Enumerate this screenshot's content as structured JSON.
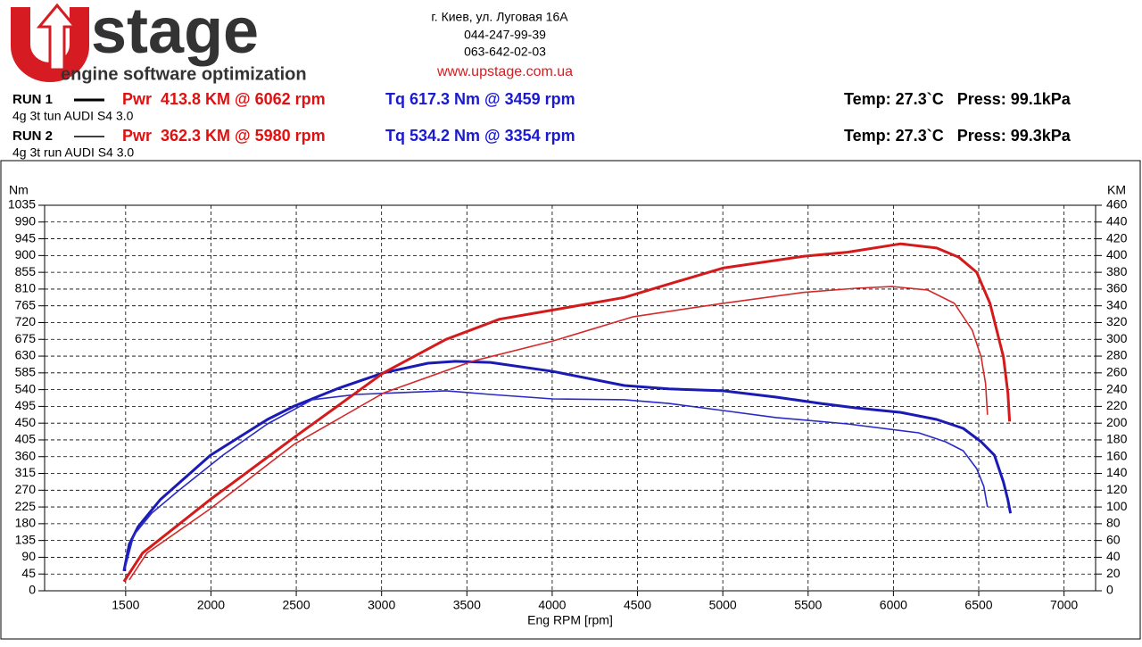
{
  "header": {
    "logo_mark": "U",
    "logo_text": "stage",
    "tagline": "engine software optimization",
    "address": [
      "г. Киев, ул. Луговая 16А",
      "044-247-99-39",
      "063-642-02-03"
    ],
    "website": "www.upstage.com.ua"
  },
  "runs": [
    {
      "label": "RUN 1",
      "power": "Pwr  413.8 KM @ 6062 rpm",
      "torque": "Tq 617.3 Nm @ 3459 rpm",
      "description": "4g 3t tun AUDI S4 3.0",
      "conditions": "Temp: 27.3`C   Press: 99.1kPa"
    },
    {
      "label": "RUN 2",
      "power": "Pwr  362.3 KM @ 5980 rpm",
      "torque": "Tq 534.2 Nm @ 3354 rpm",
      "description": "4g 3t run AUDI S4 3.0",
      "conditions": "Temp: 27.3`C   Press: 99.3kPa"
    }
  ],
  "chart_data": {
    "type": "line",
    "y_label": "Nm",
    "y2_label": "KM",
    "x_label": "Eng RPM [rpm]",
    "grid": true,
    "xlim": [
      1025,
      7185
    ],
    "xticks": [
      1500,
      2000,
      2500,
      3000,
      3500,
      4000,
      4500,
      5000,
      5500,
      6000,
      6500,
      7000
    ],
    "ylim": [
      0,
      1035
    ],
    "yticks": [
      0,
      45,
      90,
      135,
      180,
      225,
      270,
      315,
      360,
      405,
      450,
      495,
      540,
      585,
      630,
      675,
      720,
      765,
      810,
      855,
      900,
      945,
      990,
      1035
    ],
    "y2lim": [
      0,
      460
    ],
    "y2ticks": [
      0,
      20,
      40,
      60,
      80,
      100,
      120,
      140,
      160,
      180,
      200,
      220,
      240,
      260,
      280,
      300,
      320,
      340,
      360,
      380,
      400,
      420,
      440,
      460
    ],
    "series": [
      {
        "color": "#1a1ab4",
        "width": 3,
        "x": [
          1490,
          1521,
          1573,
          1704,
          1997,
          2331,
          2488,
          2750,
          3011,
          3272,
          3429,
          3638,
          4004,
          4423,
          4684,
          5000,
          5313,
          5575,
          5782,
          6043,
          6253,
          6409,
          6514,
          6592,
          6645,
          6671,
          6686
        ],
        "values": [
          53,
          125,
          172,
          245,
          364,
          460,
          496,
          544,
          585,
          611,
          616,
          613,
          589,
          551,
          542,
          537,
          520,
          503,
          491,
          479,
          460,
          436,
          400,
          364,
          292,
          244,
          208
        ]
      },
      {
        "color": "#2a2ac8",
        "width": 1.6,
        "x": [
          1495,
          1547,
          1652,
          1808,
          2070,
          2331,
          2593,
          2854,
          3115,
          3377,
          3638,
          4004,
          4423,
          4684,
          5000,
          5313,
          5730,
          6148,
          6305,
          6409,
          6488,
          6530,
          6551
        ],
        "values": [
          58,
          149,
          208,
          268,
          364,
          448,
          513,
          527,
          532,
          537,
          527,
          515,
          513,
          503,
          484,
          465,
          448,
          424,
          400,
          376,
          328,
          280,
          225
        ]
      },
      {
        "color": "#d41a1a",
        "width": 3,
        "axis": "y2",
        "x": [
          1490,
          1599,
          1997,
          2488,
          3011,
          3377,
          3691,
          4004,
          4423,
          4684,
          5000,
          5470,
          5730,
          6043,
          6253,
          6383,
          6488,
          6566,
          6645,
          6671,
          6681
        ],
        "values": [
          11,
          45,
          109,
          183,
          260,
          300,
          324,
          335,
          350,
          366,
          385,
          399,
          404,
          414,
          409,
          398,
          380,
          343,
          279,
          236,
          202
        ]
      },
      {
        "color": "#d42a2a",
        "width": 1.6,
        "axis": "y2",
        "x": [
          1521,
          1625,
          1997,
          2488,
          3011,
          3534,
          4004,
          4475,
          5000,
          5470,
          5782,
          5991,
          6200,
          6357,
          6462,
          6514,
          6540,
          6551
        ],
        "values": [
          13,
          45,
          98,
          175,
          236,
          274,
          298,
          327,
          343,
          356,
          361,
          363,
          359,
          343,
          311,
          279,
          247,
          210
        ]
      }
    ]
  }
}
